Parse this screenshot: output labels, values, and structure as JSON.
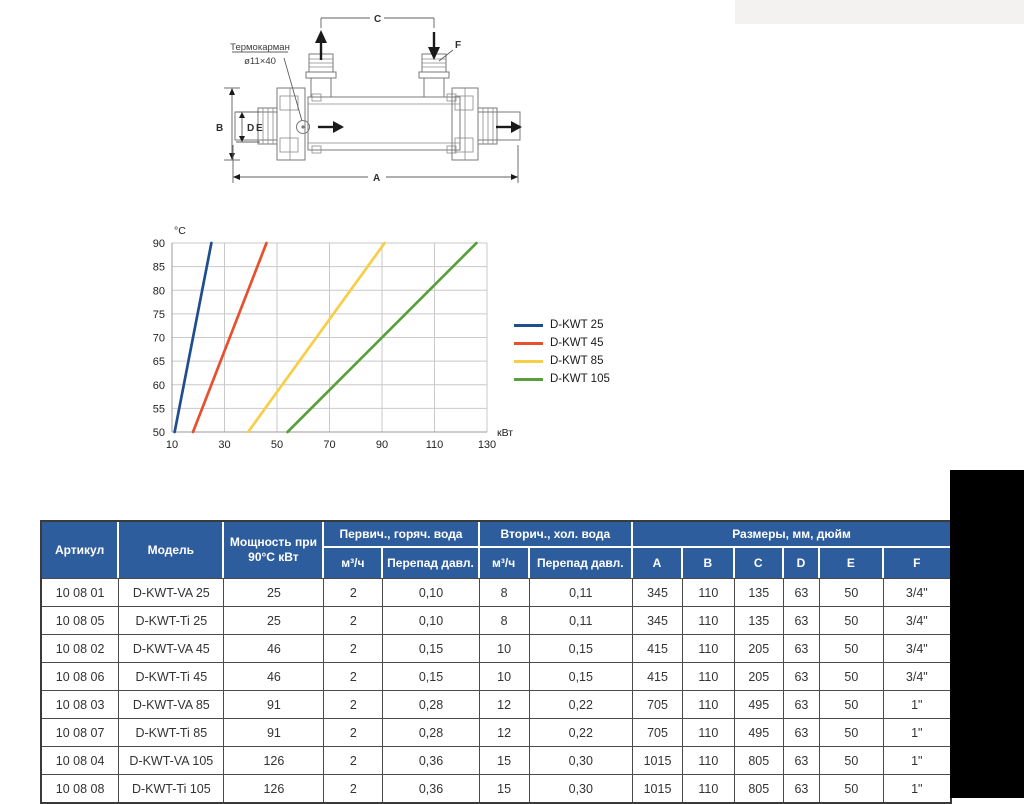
{
  "artifacts": {
    "top_strip_color": "#f2f0ed",
    "black_block_color": "#000000"
  },
  "diagram": {
    "labels": {
      "thermowell_line1": "Термокарман",
      "thermowell_line2": "ø11×40",
      "dim_a": "A",
      "dim_b": "B",
      "dim_c": "C",
      "dim_d": "D",
      "dim_e": "E",
      "dim_f": "F"
    }
  },
  "chart_data": {
    "type": "line",
    "title": "",
    "xlabel": "кВт",
    "ylabel": "°C",
    "xlim": [
      10,
      130
    ],
    "ylim": [
      50,
      90
    ],
    "x_ticks": [
      10,
      30,
      50,
      70,
      90,
      110,
      130
    ],
    "y_ticks": [
      90,
      85,
      80,
      75,
      70,
      65,
      60,
      55,
      50
    ],
    "grid": true,
    "legend_position": "right",
    "series": [
      {
        "name": "D-KWT 25",
        "color": "#1f4e8f",
        "points": [
          [
            11,
            50
          ],
          [
            25,
            90
          ]
        ]
      },
      {
        "name": "D-KWT 45",
        "color": "#e8502d",
        "points": [
          [
            18,
            50
          ],
          [
            46,
            90
          ]
        ]
      },
      {
        "name": "D-KWT 85",
        "color": "#f8ce46",
        "points": [
          [
            39,
            50
          ],
          [
            91,
            90
          ]
        ]
      },
      {
        "name": "D-KWT 105",
        "color": "#5b9e3d",
        "points": [
          [
            54,
            50
          ],
          [
            126,
            90
          ]
        ]
      }
    ]
  },
  "table": {
    "header": {
      "article": "Артикул",
      "model": "Модель",
      "power": "Мощность при 90°С кВт",
      "primary_group": "Первич., горяч. вода",
      "secondary_group": "Вторич., хол. вода",
      "dimensions_group": "Размеры, мм, дюйм",
      "flow": "м³/ч",
      "pressure_drop": "Перепад давл.",
      "dims": [
        "A",
        "B",
        "C",
        "D",
        "E",
        "F"
      ]
    },
    "rows": [
      [
        "10 08 01",
        "D-KWT-VA 25",
        "25",
        "2",
        "0,10",
        "8",
        "0,11",
        "345",
        "110",
        "135",
        "63",
        "50",
        "3/4\""
      ],
      [
        "10 08 05",
        "D-KWT-Ti 25",
        "25",
        "2",
        "0,10",
        "8",
        "0,11",
        "345",
        "110",
        "135",
        "63",
        "50",
        "3/4\""
      ],
      [
        "10 08 02",
        "D-KWT-VA 45",
        "46",
        "2",
        "0,15",
        "10",
        "0,15",
        "415",
        "110",
        "205",
        "63",
        "50",
        "3/4\""
      ],
      [
        "10 08 06",
        "D-KWT-Ti 45",
        "46",
        "2",
        "0,15",
        "10",
        "0,15",
        "415",
        "110",
        "205",
        "63",
        "50",
        "3/4\""
      ],
      [
        "10 08 03",
        "D-KWT-VA 85",
        "91",
        "2",
        "0,28",
        "12",
        "0,22",
        "705",
        "110",
        "495",
        "63",
        "50",
        "1\""
      ],
      [
        "10 08 07",
        "D-KWT-Ti 85",
        "91",
        "2",
        "0,28",
        "12",
        "0,22",
        "705",
        "110",
        "495",
        "63",
        "50",
        "1\""
      ],
      [
        "10 08 04",
        "D-KWT-VA 105",
        "126",
        "2",
        "0,36",
        "15",
        "0,30",
        "1015",
        "110",
        "805",
        "63",
        "50",
        "1\""
      ],
      [
        "10 08 08",
        "D-KWT-Ti 105",
        "126",
        "2",
        "0,36",
        "15",
        "0,30",
        "1015",
        "110",
        "805",
        "63",
        "50",
        "1\""
      ]
    ]
  }
}
